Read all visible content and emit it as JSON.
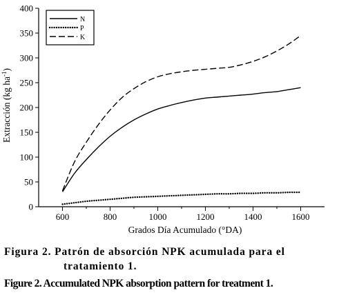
{
  "chart_data": {
    "type": "line",
    "title": "",
    "xlabel": "Grados Día Acumulado (°DA)",
    "ylabel": "Extracción (kg ha-1)",
    "ylabel_main": "Extracción (kg ha",
    "ylabel_sup": "-1",
    "ylabel_close": ")",
    "xlim": [
      500,
      1700
    ],
    "ylim": [
      0,
      400
    ],
    "x_ticks": [
      600,
      800,
      1000,
      1200,
      1400,
      1600
    ],
    "y_ticks": [
      0,
      50,
      100,
      150,
      200,
      250,
      300,
      350,
      400
    ],
    "grid": false,
    "legend_position": "top-left",
    "series": [
      {
        "name": "N",
        "style": "solid",
        "x": [
          600,
          650,
          700,
          750,
          800,
          850,
          900,
          950,
          1000,
          1050,
          1100,
          1150,
          1200,
          1250,
          1300,
          1350,
          1400,
          1450,
          1500,
          1550,
          1600
        ],
        "y": [
          30,
          67,
          95,
          120,
          142,
          160,
          175,
          187,
          197,
          204,
          210,
          215,
          219,
          221,
          223,
          225,
          227,
          230,
          232,
          236,
          240
        ]
      },
      {
        "name": "P",
        "style": "dotted",
        "x": [
          600,
          650,
          700,
          750,
          800,
          850,
          900,
          950,
          1000,
          1050,
          1100,
          1150,
          1200,
          1250,
          1300,
          1350,
          1400,
          1450,
          1500,
          1550,
          1600
        ],
        "y": [
          5,
          8,
          11,
          13,
          15,
          17,
          19,
          20,
          21,
          22,
          23,
          24,
          25,
          26,
          26,
          27,
          27,
          28,
          28,
          29,
          29
        ]
      },
      {
        "name": "K",
        "style": "dashed",
        "x": [
          600,
          650,
          700,
          750,
          800,
          850,
          900,
          950,
          1000,
          1050,
          1100,
          1150,
          1200,
          1250,
          1300,
          1350,
          1400,
          1450,
          1500,
          1550,
          1600
        ],
        "y": [
          32,
          90,
          130,
          165,
          195,
          220,
          238,
          252,
          262,
          268,
          272,
          275,
          277,
          279,
          281,
          286,
          293,
          302,
          314,
          328,
          345
        ]
      }
    ]
  },
  "caption": {
    "es_line1": "Figura 2. Patrón de absorción NPK acumulada para el",
    "es_line2": "tratamiento 1.",
    "en": "Figure 2. Accumulated NPK absorption pattern for treatment 1."
  }
}
